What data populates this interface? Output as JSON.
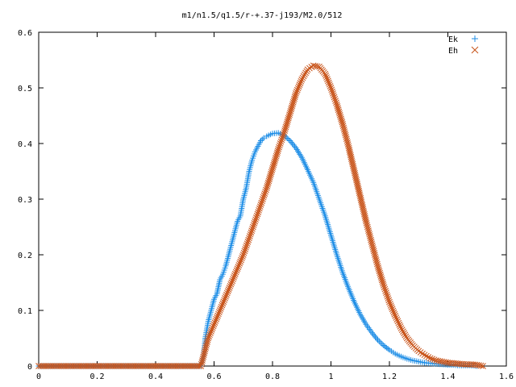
{
  "chart_data": {
    "type": "scatter",
    "title": "m1/n1.5/q1.5/r-+.37-j193/M2.0/512",
    "xlabel": "",
    "ylabel": "",
    "xlim": [
      0,
      1.6
    ],
    "ylim": [
      0,
      0.6
    ],
    "x_ticks": [
      "0",
      "0.2",
      "0.4",
      "0.6",
      "0.8",
      "1",
      "1.2",
      "1.4",
      "1.6"
    ],
    "y_ticks": [
      "0",
      "0.1",
      "0.2",
      "0.3",
      "0.4",
      "0.5",
      "0.6"
    ],
    "grid": false,
    "legend_position": "top-right",
    "series": [
      {
        "name": "Ek",
        "marker": "+",
        "color": "#1f8ee6",
        "points": [
          [
            0.0,
            0.0
          ],
          [
            0.1,
            0.0
          ],
          [
            0.2,
            0.0
          ],
          [
            0.3,
            0.0
          ],
          [
            0.4,
            0.0
          ],
          [
            0.5,
            0.0
          ],
          [
            0.555,
            0.0
          ],
          [
            0.565,
            0.02
          ],
          [
            0.57,
            0.05
          ],
          [
            0.58,
            0.08
          ],
          [
            0.59,
            0.1
          ],
          [
            0.6,
            0.12
          ],
          [
            0.61,
            0.13
          ],
          [
            0.62,
            0.155
          ],
          [
            0.63,
            0.165
          ],
          [
            0.64,
            0.18
          ],
          [
            0.65,
            0.2
          ],
          [
            0.66,
            0.22
          ],
          [
            0.67,
            0.24
          ],
          [
            0.68,
            0.26
          ],
          [
            0.69,
            0.27
          ],
          [
            0.7,
            0.3
          ],
          [
            0.71,
            0.32
          ],
          [
            0.72,
            0.35
          ],
          [
            0.73,
            0.37
          ],
          [
            0.74,
            0.385
          ],
          [
            0.75,
            0.395
          ],
          [
            0.76,
            0.405
          ],
          [
            0.77,
            0.41
          ],
          [
            0.78,
            0.413
          ],
          [
            0.8,
            0.418
          ],
          [
            0.82,
            0.419
          ],
          [
            0.84,
            0.414
          ],
          [
            0.86,
            0.405
          ],
          [
            0.88,
            0.392
          ],
          [
            0.9,
            0.375
          ],
          [
            0.92,
            0.353
          ],
          [
            0.94,
            0.33
          ],
          [
            0.96,
            0.3
          ],
          [
            0.98,
            0.27
          ],
          [
            1.0,
            0.235
          ],
          [
            1.02,
            0.2
          ],
          [
            1.04,
            0.168
          ],
          [
            1.06,
            0.14
          ],
          [
            1.08,
            0.115
          ],
          [
            1.1,
            0.093
          ],
          [
            1.12,
            0.075
          ],
          [
            1.14,
            0.06
          ],
          [
            1.16,
            0.047
          ],
          [
            1.18,
            0.037
          ],
          [
            1.2,
            0.029
          ],
          [
            1.22,
            0.022
          ],
          [
            1.24,
            0.017
          ],
          [
            1.26,
            0.013
          ],
          [
            1.28,
            0.01
          ],
          [
            1.3,
            0.008
          ],
          [
            1.32,
            0.006
          ],
          [
            1.34,
            0.005
          ],
          [
            1.36,
            0.004
          ],
          [
            1.38,
            0.003
          ],
          [
            1.4,
            0.002
          ],
          [
            1.42,
            0.002
          ],
          [
            1.44,
            0.001
          ],
          [
            1.46,
            0.001
          ],
          [
            1.48,
            0.001
          ],
          [
            1.5,
            0.0
          ]
        ]
      },
      {
        "name": "Eh",
        "marker": "x",
        "color": "#c8541a",
        "points": [
          [
            0.0,
            0.0
          ],
          [
            0.1,
            0.0
          ],
          [
            0.2,
            0.0
          ],
          [
            0.3,
            0.0
          ],
          [
            0.4,
            0.0
          ],
          [
            0.5,
            0.0
          ],
          [
            0.555,
            0.0
          ],
          [
            0.565,
            0.02
          ],
          [
            0.58,
            0.05
          ],
          [
            0.6,
            0.075
          ],
          [
            0.62,
            0.1
          ],
          [
            0.64,
            0.125
          ],
          [
            0.66,
            0.15
          ],
          [
            0.68,
            0.175
          ],
          [
            0.7,
            0.2
          ],
          [
            0.72,
            0.23
          ],
          [
            0.74,
            0.26
          ],
          [
            0.76,
            0.29
          ],
          [
            0.78,
            0.32
          ],
          [
            0.8,
            0.355
          ],
          [
            0.82,
            0.39
          ],
          [
            0.84,
            0.42
          ],
          [
            0.86,
            0.455
          ],
          [
            0.88,
            0.49
          ],
          [
            0.9,
            0.515
          ],
          [
            0.92,
            0.533
          ],
          [
            0.94,
            0.54
          ],
          [
            0.96,
            0.538
          ],
          [
            0.98,
            0.525
          ],
          [
            1.0,
            0.5
          ],
          [
            1.02,
            0.47
          ],
          [
            1.04,
            0.435
          ],
          [
            1.06,
            0.395
          ],
          [
            1.08,
            0.35
          ],
          [
            1.1,
            0.305
          ],
          [
            1.12,
            0.26
          ],
          [
            1.14,
            0.22
          ],
          [
            1.16,
            0.18
          ],
          [
            1.18,
            0.145
          ],
          [
            1.2,
            0.115
          ],
          [
            1.22,
            0.09
          ],
          [
            1.24,
            0.068
          ],
          [
            1.26,
            0.05
          ],
          [
            1.28,
            0.037
          ],
          [
            1.3,
            0.027
          ],
          [
            1.32,
            0.02
          ],
          [
            1.34,
            0.014
          ],
          [
            1.36,
            0.01
          ],
          [
            1.38,
            0.008
          ],
          [
            1.4,
            0.006
          ],
          [
            1.42,
            0.005
          ],
          [
            1.44,
            0.004
          ],
          [
            1.46,
            0.003
          ],
          [
            1.48,
            0.003
          ],
          [
            1.5,
            0.002
          ],
          [
            1.52,
            0.0
          ]
        ]
      }
    ]
  }
}
